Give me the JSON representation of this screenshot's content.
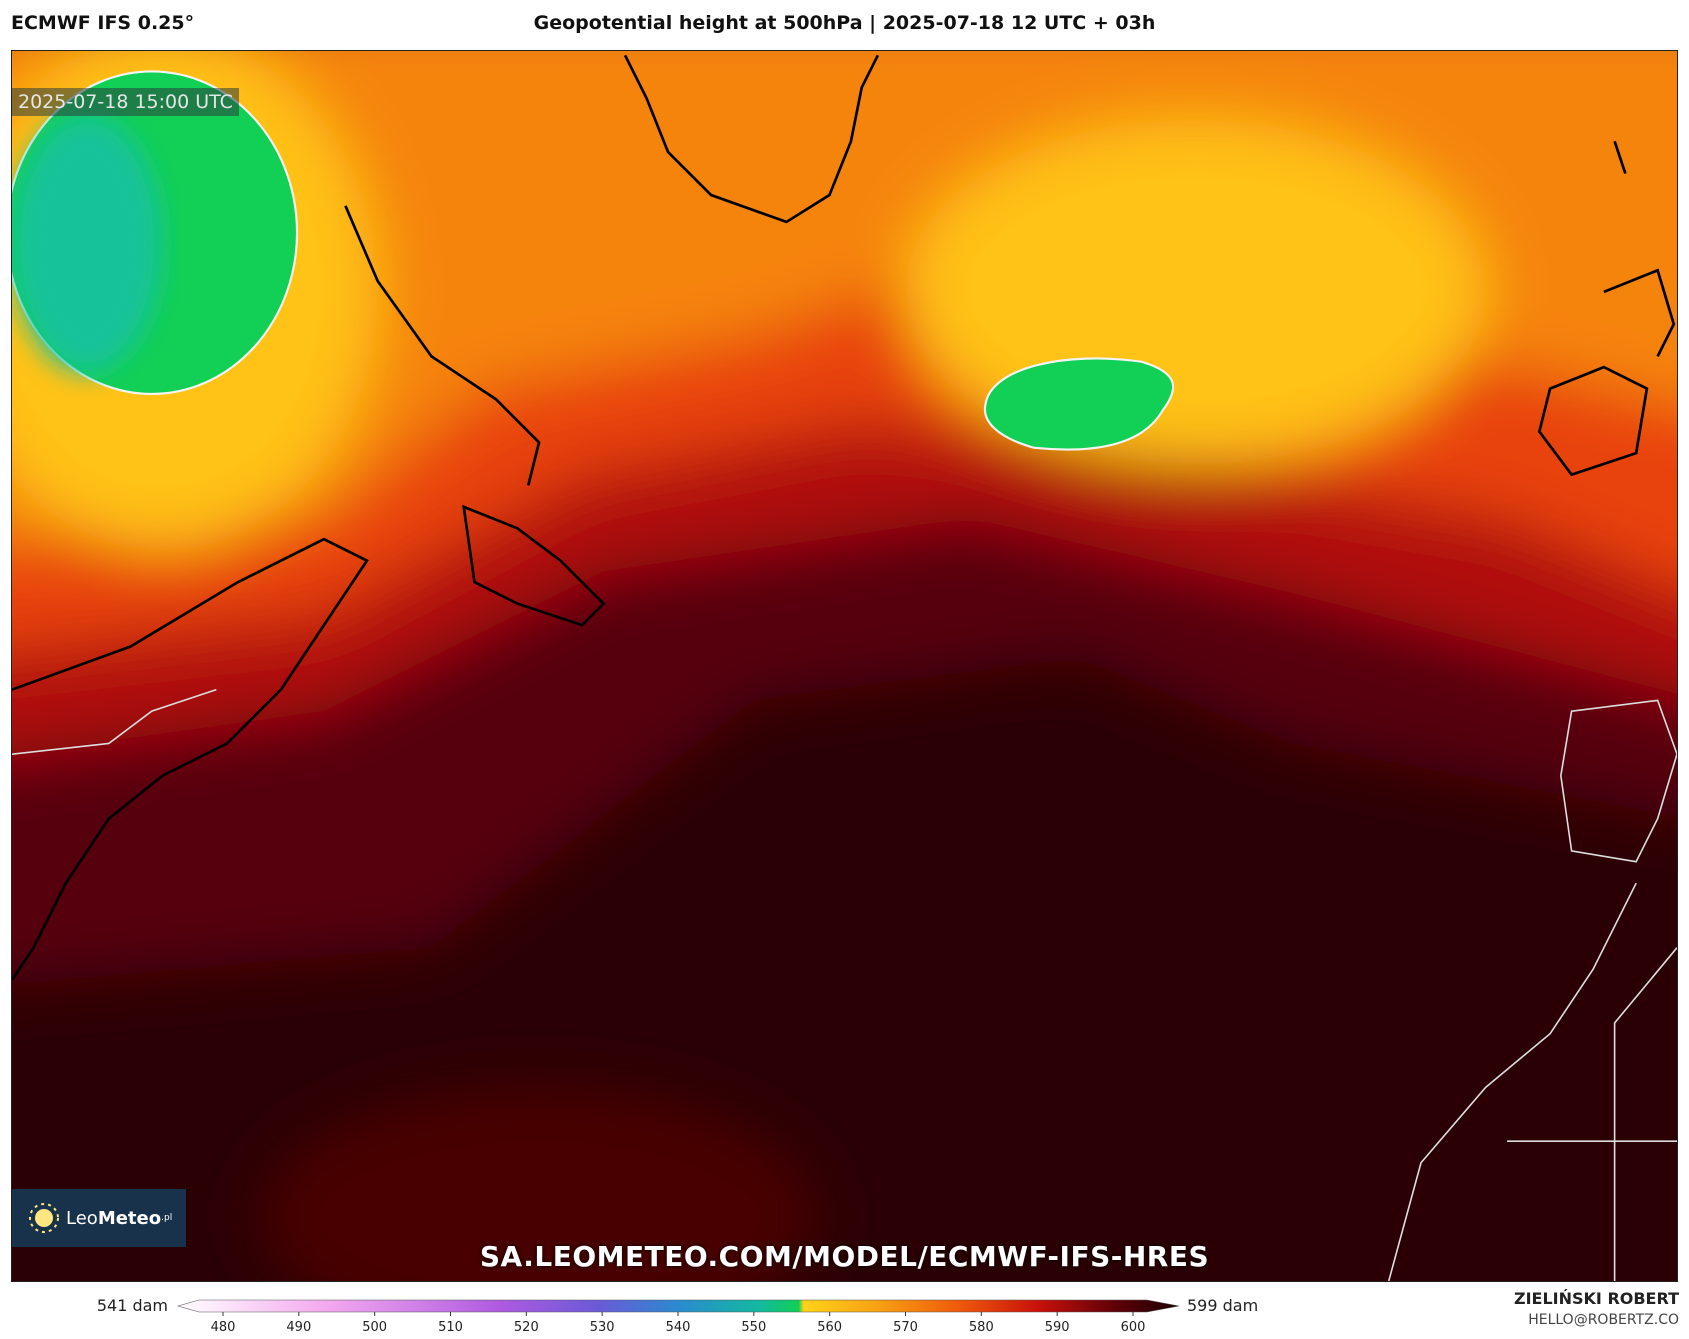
{
  "header": {
    "model": "ECMWF IFS 0.25°",
    "title": "Geopotential height at 500hPa | 2025-07-18 12 UTC + 03h"
  },
  "map": {
    "valid_time": "2025-07-18 15:00 UTC",
    "url": "SA.LEOMETEO.COM/MODEL/ECMWF-IFS-HRES",
    "logo": {
      "leo": "Leo",
      "meteo": "Meteo",
      "suffix": ".pl"
    }
  },
  "colorbar": {
    "min_label": "541 dam",
    "max_label": "599 dam",
    "ticks": [
      480,
      490,
      500,
      510,
      520,
      530,
      540,
      550,
      560,
      570,
      580,
      590,
      600
    ]
  },
  "credit": {
    "author": "ZIELIŃSKI ROBERT",
    "email": "HELLO@ROBERTZ.CO"
  }
}
